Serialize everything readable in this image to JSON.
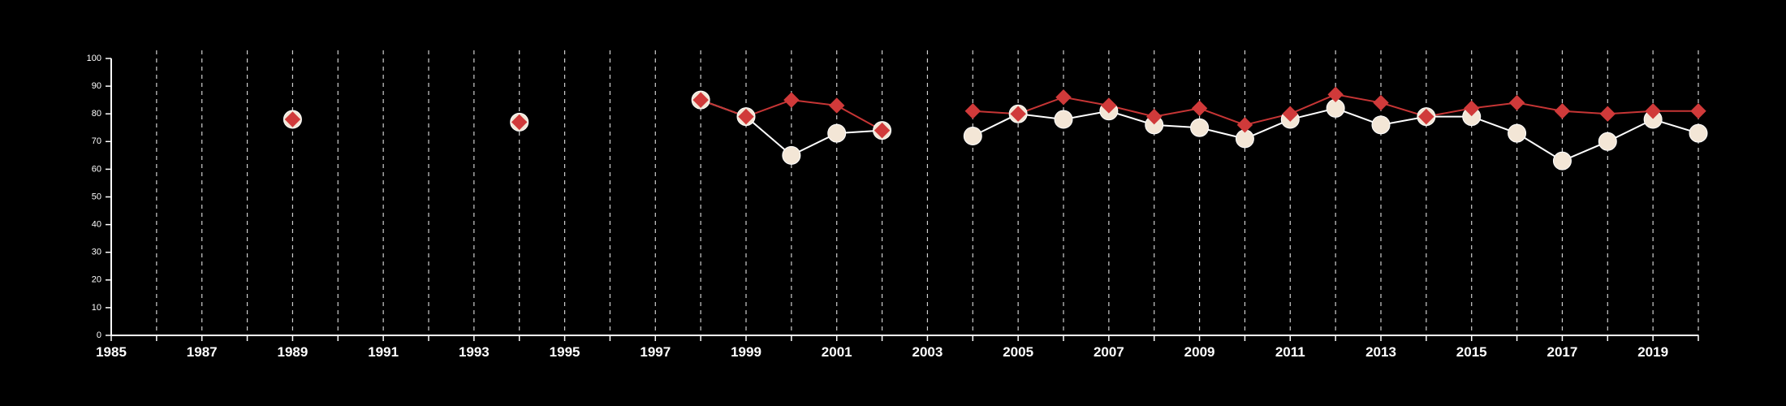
{
  "chart_data": {
    "type": "line",
    "title": "",
    "xlabel": "",
    "ylabel": "",
    "xlim": [
      1985,
      2020
    ],
    "ylim": [
      0,
      100
    ],
    "x_ticks": [
      1985,
      1986,
      1987,
      1988,
      1989,
      1990,
      1991,
      1992,
      1993,
      1994,
      1995,
      1996,
      1997,
      1998,
      1999,
      2000,
      2001,
      2002,
      2003,
      2004,
      2005,
      2006,
      2007,
      2008,
      2009,
      2010,
      2011,
      2012,
      2013,
      2014,
      2015,
      2016,
      2017,
      2018,
      2019,
      2020
    ],
    "x_tick_labels": [
      "1985",
      "1987",
      "1989",
      "1991",
      "1993",
      "1995",
      "1997",
      "1999",
      "2001",
      "2003",
      "2005",
      "2007",
      "2009",
      "2011",
      "2013",
      "2015",
      "2017",
      "2019"
    ],
    "y_ticks": [
      0,
      10,
      20,
      30,
      40,
      50,
      60,
      70,
      80,
      90,
      100
    ],
    "grid": {
      "vertical": true,
      "horizontal": false,
      "style": "dashed"
    },
    "series": [
      {
        "marker": "circle",
        "color": "#f3e6d6",
        "line_color": "#ffffff",
        "points": [
          [
            1989,
            78
          ],
          [
            1994,
            77
          ],
          [
            1998,
            85
          ],
          [
            1999,
            79
          ],
          [
            2000,
            65
          ],
          [
            2001,
            73
          ],
          [
            2002,
            74
          ],
          [
            2004,
            72
          ],
          [
            2005,
            80
          ],
          [
            2006,
            78
          ],
          [
            2007,
            81
          ],
          [
            2008,
            76
          ],
          [
            2009,
            75
          ],
          [
            2010,
            71
          ],
          [
            2011,
            78
          ],
          [
            2012,
            82
          ],
          [
            2013,
            76
          ],
          [
            2014,
            79
          ],
          [
            2015,
            79
          ],
          [
            2016,
            73
          ],
          [
            2017,
            63
          ],
          [
            2018,
            70
          ],
          [
            2019,
            78
          ],
          [
            2020,
            73
          ]
        ]
      },
      {
        "marker": "diamond",
        "color": "#d03a3a",
        "line_color": "#c63535",
        "points": [
          [
            1989,
            78
          ],
          [
            1994,
            77
          ],
          [
            1998,
            85
          ],
          [
            1999,
            79
          ],
          [
            2000,
            85
          ],
          [
            2001,
            83
          ],
          [
            2002,
            74
          ],
          [
            2004,
            81
          ],
          [
            2005,
            80
          ],
          [
            2006,
            86
          ],
          [
            2007,
            83
          ],
          [
            2008,
            79
          ],
          [
            2009,
            82
          ],
          [
            2010,
            76
          ],
          [
            2011,
            80
          ],
          [
            2012,
            87
          ],
          [
            2013,
            84
          ],
          [
            2014,
            79
          ],
          [
            2015,
            82
          ],
          [
            2016,
            84
          ],
          [
            2017,
            81
          ],
          [
            2018,
            80
          ],
          [
            2019,
            81
          ],
          [
            2020,
            81
          ]
        ]
      }
    ]
  }
}
